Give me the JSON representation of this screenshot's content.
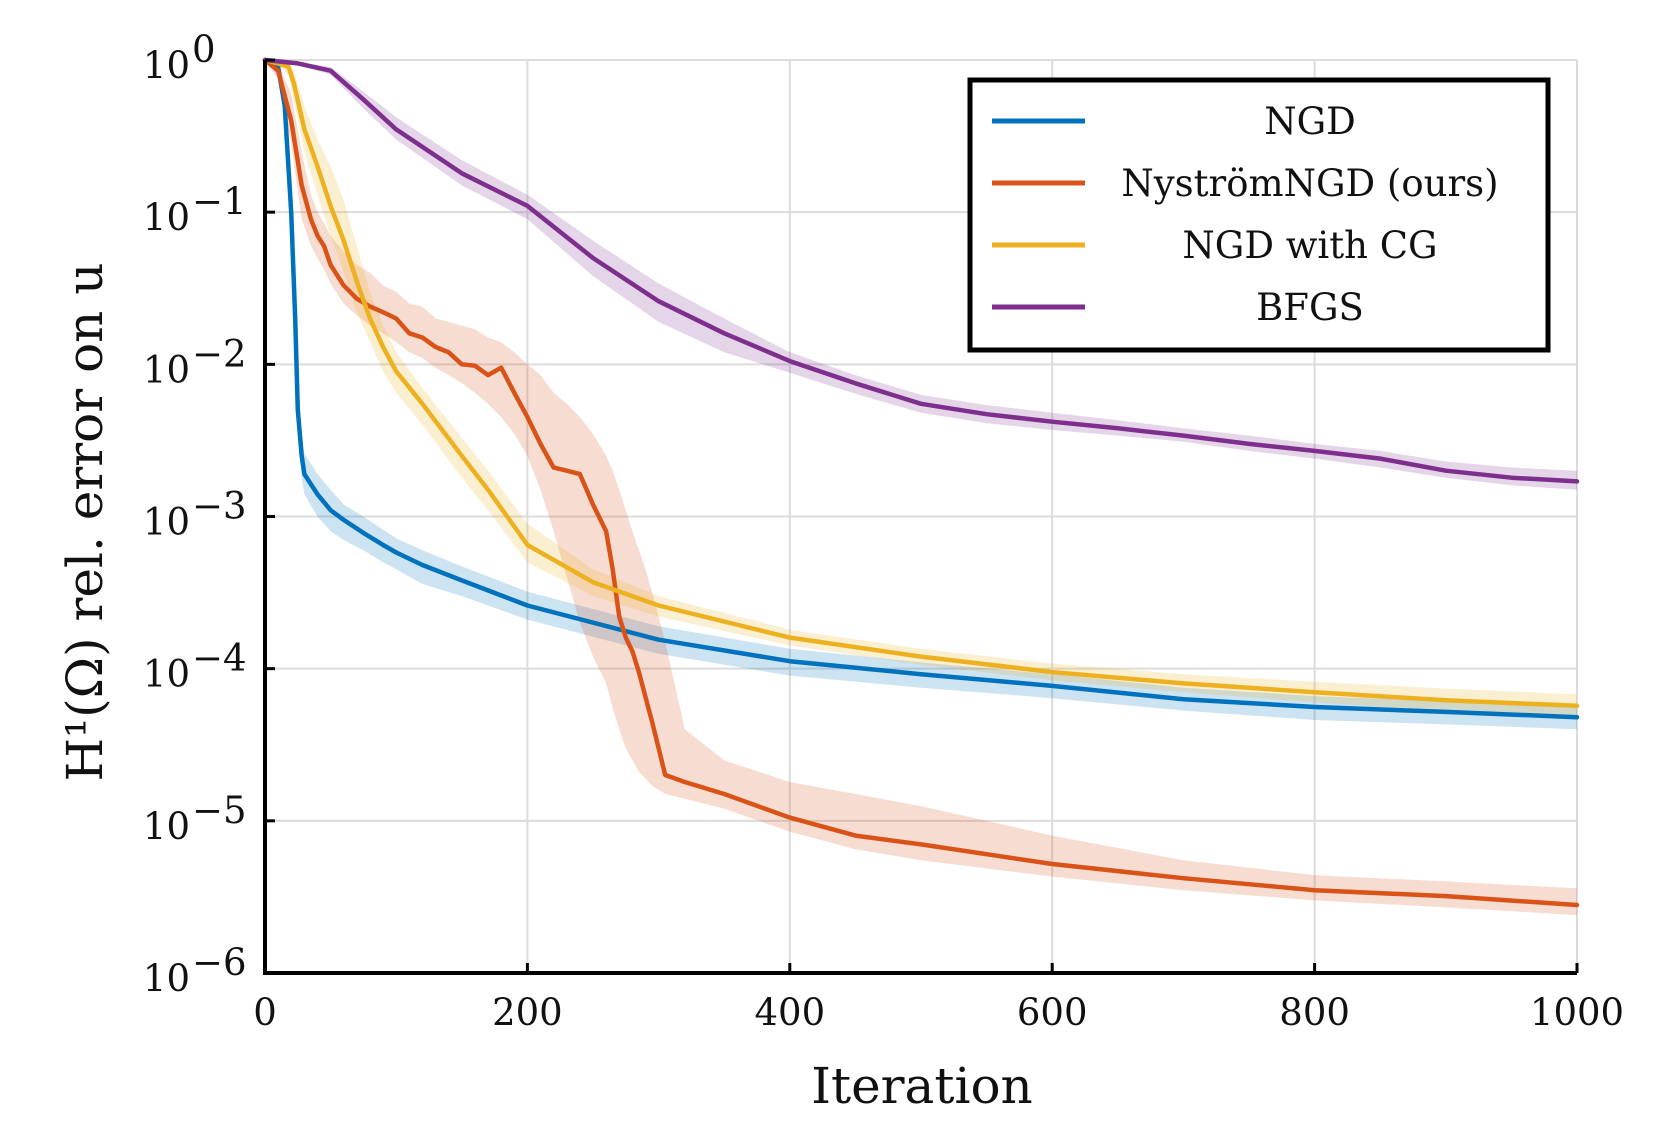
{
  "chart_data": {
    "type": "line",
    "title": "",
    "xlabel": "Iteration",
    "ylabel": "H¹(Ω) rel. error on u",
    "xlim": [
      0,
      1000
    ],
    "ylim": [
      1e-06,
      1
    ],
    "yscale": "log",
    "grid": true,
    "legend_position": "top-right",
    "x_ticks": [
      {
        "value": 0,
        "label": "0"
      },
      {
        "value": 200,
        "label": "200"
      },
      {
        "value": 400,
        "label": "400"
      },
      {
        "value": 600,
        "label": "600"
      },
      {
        "value": 800,
        "label": "800"
      },
      {
        "value": 1000,
        "label": "1000"
      }
    ],
    "y_ticks": [
      {
        "value": 1,
        "base": "10",
        "exp": "0"
      },
      {
        "value": 0.1,
        "base": "10",
        "exp": "−1"
      },
      {
        "value": 0.01,
        "base": "10",
        "exp": "−2"
      },
      {
        "value": 0.001,
        "base": "10",
        "exp": "−3"
      },
      {
        "value": 0.0001,
        "base": "10",
        "exp": "−4"
      },
      {
        "value": 1e-05,
        "base": "10",
        "exp": "−5"
      },
      {
        "value": 1e-06,
        "base": "10",
        "exp": "−6"
      }
    ],
    "series": [
      {
        "name": "NGD",
        "color": "#0072BD",
        "x": [
          0,
          10,
          15,
          20,
          23,
          25,
          28,
          30,
          40,
          50,
          60,
          75,
          90,
          100,
          120,
          150,
          200,
          300,
          400,
          500,
          600,
          700,
          800,
          900,
          1000
        ],
        "y": [
          1,
          0.9,
          0.5,
          0.1,
          0.02,
          0.005,
          0.0025,
          0.0019,
          0.0014,
          0.0011,
          0.00095,
          0.00078,
          0.00065,
          0.00058,
          0.00048,
          0.00038,
          0.00026,
          0.000155,
          0.000112,
          9.2e-05,
          7.7e-05,
          6.3e-05,
          5.6e-05,
          5.2e-05,
          4.8e-05
        ],
        "band_upper": [
          1,
          0.95,
          0.6,
          0.13,
          0.03,
          0.008,
          0.0035,
          0.0026,
          0.0019,
          0.0015,
          0.0012,
          0.001,
          0.00082,
          0.00072,
          0.0006,
          0.00047,
          0.00032,
          0.00019,
          0.000135,
          0.00011,
          9.2e-05,
          7.5e-05,
          6.6e-05,
          6.1e-05,
          5.6e-05
        ],
        "band_lower": [
          1,
          0.85,
          0.4,
          0.07,
          0.014,
          0.0035,
          0.0018,
          0.0014,
          0.001,
          0.0008,
          0.0007,
          0.0006,
          0.0005,
          0.00045,
          0.00036,
          0.0003,
          0.00021,
          0.000125,
          9e-05,
          7.5e-05,
          6.4e-05,
          5.3e-05,
          4.6e-05,
          4.3e-05,
          4e-05
        ]
      },
      {
        "name": "NyströmNGD (ours)",
        "color": "#D95319",
        "x": [
          0,
          10,
          20,
          28,
          35,
          40,
          45,
          50,
          60,
          70,
          80,
          90,
          100,
          110,
          120,
          130,
          140,
          150,
          160,
          170,
          180,
          190,
          200,
          210,
          220,
          230,
          240,
          250,
          260,
          265,
          270,
          275,
          280,
          285,
          290,
          295,
          300,
          305,
          320,
          350,
          400,
          450,
          500,
          600,
          700,
          800,
          900,
          1000
        ],
        "y": [
          1,
          0.85,
          0.4,
          0.15,
          0.09,
          0.07,
          0.06,
          0.045,
          0.033,
          0.027,
          0.024,
          0.022,
          0.02,
          0.016,
          0.015,
          0.013,
          0.012,
          0.01,
          0.0098,
          0.0085,
          0.0095,
          0.0065,
          0.0045,
          0.003,
          0.0021,
          0.002,
          0.0019,
          0.0012,
          0.0008,
          0.00045,
          0.00022,
          0.00016,
          0.00013,
          9.5e-05,
          6.5e-05,
          4.5e-05,
          3e-05,
          2e-05,
          1.8e-05,
          1.5e-05,
          1.05e-05,
          8e-06,
          7e-06,
          5.2e-06,
          4.2e-06,
          3.5e-06,
          3.2e-06,
          2.8e-06
        ],
        "band_upper": [
          1,
          0.95,
          0.6,
          0.25,
          0.13,
          0.1,
          0.085,
          0.07,
          0.055,
          0.045,
          0.04,
          0.033,
          0.03,
          0.025,
          0.024,
          0.02,
          0.019,
          0.018,
          0.017,
          0.015,
          0.014,
          0.012,
          0.01,
          0.0085,
          0.0065,
          0.0055,
          0.0045,
          0.0035,
          0.0025,
          0.002,
          0.0015,
          0.0011,
          0.0008,
          0.0006,
          0.00045,
          0.00032,
          0.00022,
          0.00015,
          4e-05,
          2.5e-05,
          1.8e-05,
          1.5e-05,
          1.25e-05,
          8e-06,
          5.5e-06,
          4.4e-06,
          4e-06,
          3.6e-06
        ],
        "band_lower": [
          1,
          0.75,
          0.28,
          0.09,
          0.06,
          0.05,
          0.042,
          0.034,
          0.025,
          0.021,
          0.018,
          0.016,
          0.014,
          0.012,
          0.011,
          0.0095,
          0.0085,
          0.0075,
          0.0065,
          0.0055,
          0.0045,
          0.0035,
          0.0025,
          0.0015,
          0.0008,
          0.0004,
          0.0002,
          0.00012,
          8e-05,
          5.5e-05,
          4e-05,
          3e-05,
          2.5e-05,
          2.1e-05,
          1.9e-05,
          1.7e-05,
          1.6e-05,
          1.5e-05,
          1.4e-05,
          1.2e-05,
          8.5e-06,
          6.5e-06,
          5.5e-06,
          4.3e-06,
          3.5e-06,
          3e-06,
          2.7e-06,
          2.4e-06
        ]
      },
      {
        "name": "NGD with CG",
        "color": "#EDB120",
        "x": [
          0,
          10,
          18,
          22,
          30,
          40,
          50,
          60,
          70,
          80,
          90,
          100,
          120,
          150,
          170,
          200,
          250,
          300,
          400,
          500,
          600,
          700,
          800,
          900,
          1000
        ],
        "y": [
          1,
          0.95,
          0.9,
          0.7,
          0.35,
          0.2,
          0.11,
          0.065,
          0.035,
          0.02,
          0.013,
          0.009,
          0.0055,
          0.0025,
          0.0015,
          0.00065,
          0.00037,
          0.00026,
          0.00016,
          0.00012,
          9.5e-05,
          8e-05,
          7e-05,
          6.2e-05,
          5.7e-05
        ],
        "band_upper": [
          1,
          1,
          0.97,
          0.85,
          0.5,
          0.3,
          0.2,
          0.12,
          0.06,
          0.03,
          0.018,
          0.012,
          0.007,
          0.0033,
          0.002,
          0.0009,
          0.00045,
          0.0003,
          0.00018,
          0.000135,
          0.000108,
          9.2e-05,
          8.2e-05,
          7.4e-05,
          6.8e-05
        ],
        "band_lower": [
          1,
          0.9,
          0.8,
          0.55,
          0.25,
          0.13,
          0.07,
          0.04,
          0.022,
          0.014,
          0.009,
          0.0065,
          0.004,
          0.0018,
          0.0011,
          0.0005,
          0.0003,
          0.00022,
          0.000142,
          0.000106,
          8.4e-05,
          7e-05,
          6e-05,
          5.3e-05,
          4.9e-05
        ]
      },
      {
        "name": "BFGS",
        "color": "#7E2F8E",
        "x": [
          0,
          25,
          50,
          75,
          100,
          150,
          200,
          250,
          300,
          350,
          400,
          450,
          500,
          550,
          600,
          650,
          700,
          750,
          800,
          850,
          900,
          950,
          1000
        ],
        "y": [
          1,
          0.95,
          0.85,
          0.55,
          0.35,
          0.18,
          0.11,
          0.05,
          0.026,
          0.016,
          0.0105,
          0.0075,
          0.0055,
          0.0047,
          0.0042,
          0.0038,
          0.0034,
          0.003,
          0.0027,
          0.0024,
          0.002,
          0.0018,
          0.0017
        ],
        "band_upper": [
          1,
          0.97,
          0.9,
          0.62,
          0.42,
          0.22,
          0.13,
          0.065,
          0.034,
          0.02,
          0.012,
          0.0085,
          0.0063,
          0.0054,
          0.0048,
          0.0043,
          0.0038,
          0.0034,
          0.003,
          0.0027,
          0.0023,
          0.0021,
          0.002
        ],
        "band_lower": [
          1,
          0.93,
          0.8,
          0.48,
          0.3,
          0.15,
          0.09,
          0.038,
          0.019,
          0.012,
          0.0088,
          0.0064,
          0.0048,
          0.0041,
          0.0037,
          0.0034,
          0.0031,
          0.0027,
          0.0024,
          0.0021,
          0.0018,
          0.0016,
          0.0015
        ]
      }
    ]
  }
}
